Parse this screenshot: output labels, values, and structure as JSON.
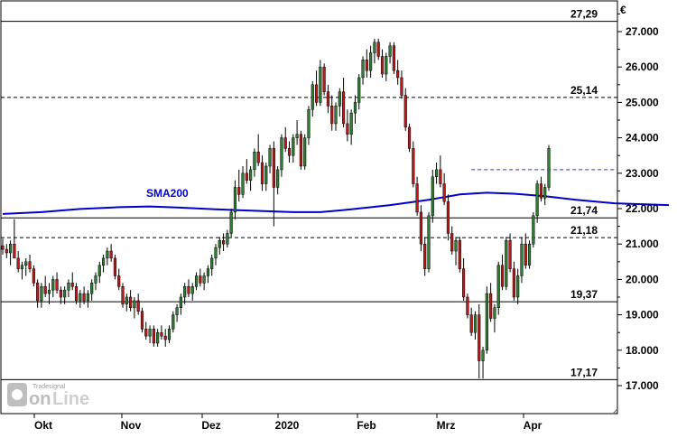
{
  "currency": "€",
  "watermark": {
    "brand": "Tradesignal",
    "name": "online"
  },
  "chart_data": {
    "type": "candlestick",
    "y_axis": {
      "ticks": [
        17000,
        18000,
        19000,
        20000,
        21000,
        22000,
        23000,
        24000,
        25000,
        26000,
        27000
      ],
      "tick_labels": [
        "17.000",
        "18.000",
        "19.000",
        "20.000",
        "21.000",
        "22.000",
        "23.000",
        "24.000",
        "25.000",
        "26.000",
        "27.000"
      ],
      "range": [
        16500,
        28000
      ],
      "side": "right"
    },
    "x_axis": {
      "labels": [
        "Okt",
        "Nov",
        "Dez",
        "2020",
        "Feb",
        "Mrz",
        "Apr"
      ]
    },
    "grid": false,
    "horizontal_levels": [
      {
        "value": 27290,
        "label": "27,29",
        "style": "solid"
      },
      {
        "value": 25140,
        "label": "25,14",
        "style": "dashed"
      },
      {
        "value": 21740,
        "label": "21,74",
        "style": "solid"
      },
      {
        "value": 21180,
        "label": "21,18",
        "style": "dashed"
      },
      {
        "value": 19370,
        "label": "19,37",
        "style": "solid"
      },
      {
        "value": 17170,
        "label": "17,17",
        "style": "solid"
      }
    ],
    "short_resistance": {
      "value": 23100,
      "from_index": 121,
      "style": "dashed",
      "color": "#3333cc"
    },
    "series_label": "SMA200",
    "sma200": [
      [
        0,
        21850
      ],
      [
        10,
        21900
      ],
      [
        20,
        21990
      ],
      [
        30,
        22040
      ],
      [
        38,
        22060
      ],
      [
        45,
        22030
      ],
      [
        55,
        21980
      ],
      [
        65,
        21940
      ],
      [
        75,
        21900
      ],
      [
        82,
        21900
      ],
      [
        90,
        21980
      ],
      [
        100,
        22100
      ],
      [
        110,
        22250
      ],
      [
        118,
        22400
      ],
      [
        125,
        22450
      ],
      [
        132,
        22420
      ],
      [
        140,
        22350
      ],
      [
        148,
        22250
      ],
      [
        158,
        22150
      ],
      [
        172,
        22100
      ]
    ],
    "candles": [
      [
        20950,
        21150,
        20700,
        20850
      ],
      [
        20850,
        21000,
        20600,
        20750
      ],
      [
        20750,
        21100,
        20400,
        21000
      ],
      [
        21000,
        21700,
        20700,
        20600
      ],
      [
        20600,
        20800,
        20200,
        20300
      ],
      [
        20300,
        20500,
        20000,
        20400
      ],
      [
        20400,
        20600,
        20100,
        20500
      ],
      [
        20500,
        20700,
        20200,
        20300
      ],
      [
        20300,
        20400,
        19800,
        19900
      ],
      [
        19900,
        20000,
        19200,
        19400
      ],
      [
        19400,
        19900,
        19200,
        19800
      ],
      [
        19800,
        20100,
        19500,
        19600
      ],
      [
        19600,
        19900,
        19300,
        19700
      ],
      [
        19700,
        20100,
        19500,
        20000
      ],
      [
        20000,
        20200,
        19600,
        19700
      ],
      [
        19700,
        19800,
        19300,
        19500
      ],
      [
        19500,
        19800,
        19300,
        19700
      ],
      [
        19700,
        20000,
        19500,
        19900
      ],
      [
        19900,
        20200,
        19700,
        19800
      ],
      [
        19800,
        19900,
        19300,
        19400
      ],
      [
        19400,
        19700,
        19200,
        19600
      ],
      [
        19600,
        19800,
        19300,
        19400
      ],
      [
        19400,
        19700,
        19200,
        19600
      ],
      [
        19600,
        20000,
        19400,
        19900
      ],
      [
        19900,
        20200,
        19700,
        20100
      ],
      [
        20100,
        20500,
        19900,
        20400
      ],
      [
        20400,
        20700,
        20200,
        20600
      ],
      [
        20600,
        20900,
        20400,
        20800
      ],
      [
        20800,
        21000,
        20500,
        20600
      ],
      [
        20600,
        20700,
        20000,
        20100
      ],
      [
        20100,
        20300,
        19700,
        19800
      ],
      [
        19800,
        19900,
        19200,
        19300
      ],
      [
        19300,
        19600,
        19100,
        19500
      ],
      [
        19500,
        19700,
        19100,
        19200
      ],
      [
        19200,
        19500,
        18900,
        19400
      ],
      [
        19400,
        19600,
        19000,
        19100
      ],
      [
        19100,
        19200,
        18500,
        18600
      ],
      [
        18600,
        18800,
        18300,
        18400
      ],
      [
        18400,
        18700,
        18200,
        18600
      ],
      [
        18600,
        18700,
        18100,
        18200
      ],
      [
        18200,
        18600,
        18100,
        18500
      ],
      [
        18500,
        18700,
        18300,
        18400
      ],
      [
        18400,
        18600,
        18100,
        18300
      ],
      [
        18300,
        18700,
        18200,
        18600
      ],
      [
        18600,
        19100,
        18500,
        19000
      ],
      [
        19000,
        19300,
        18800,
        19200
      ],
      [
        19200,
        19600,
        19000,
        19500
      ],
      [
        19500,
        19900,
        19300,
        19800
      ],
      [
        19800,
        20000,
        19500,
        19600
      ],
      [
        19600,
        19900,
        19400,
        19800
      ],
      [
        19800,
        20200,
        19700,
        20100
      ],
      [
        20100,
        20300,
        19800,
        19900
      ],
      [
        19900,
        20200,
        19700,
        20100
      ],
      [
        20100,
        20400,
        19900,
        20300
      ],
      [
        20300,
        20700,
        20100,
        20600
      ],
      [
        20600,
        21000,
        20400,
        20900
      ],
      [
        20900,
        21200,
        20700,
        21100
      ],
      [
        21100,
        21300,
        20800,
        21000
      ],
      [
        21000,
        21400,
        20900,
        21300
      ],
      [
        21300,
        22000,
        21200,
        21900
      ],
      [
        21900,
        22800,
        21700,
        22600
      ],
      [
        22600,
        23100,
        22200,
        22400
      ],
      [
        22400,
        23200,
        22300,
        23000
      ],
      [
        23000,
        23400,
        22700,
        22800
      ],
      [
        22800,
        23200,
        22500,
        23100
      ],
      [
        23100,
        23700,
        22900,
        23600
      ],
      [
        23600,
        24100,
        23200,
        23300
      ],
      [
        23300,
        23500,
        22500,
        22700
      ],
      [
        22700,
        23300,
        22500,
        23200
      ],
      [
        23200,
        23800,
        23000,
        23700
      ],
      [
        23700,
        23900,
        21500,
        22600
      ],
      [
        22600,
        23200,
        22400,
        23100
      ],
      [
        23100,
        24100,
        22900,
        24000
      ],
      [
        24000,
        24300,
        23600,
        23700
      ],
      [
        23700,
        23900,
        23300,
        23500
      ],
      [
        23500,
        24100,
        23300,
        24000
      ],
      [
        24000,
        24500,
        23800,
        24100
      ],
      [
        24100,
        24200,
        23100,
        23200
      ],
      [
        23200,
        24100,
        23100,
        24000
      ],
      [
        24000,
        24900,
        23800,
        24800
      ],
      [
        24800,
        25600,
        24600,
        25500
      ],
      [
        25500,
        25900,
        24900,
        25000
      ],
      [
        25000,
        26200,
        24900,
        26000
      ],
      [
        26000,
        26100,
        25200,
        25300
      ],
      [
        25300,
        25500,
        24700,
        24900
      ],
      [
        24900,
        25200,
        24200,
        24400
      ],
      [
        24400,
        25000,
        24200,
        24900
      ],
      [
        24900,
        25400,
        24600,
        25300
      ],
      [
        25300,
        25700,
        24300,
        24400
      ],
      [
        24400,
        24800,
        23900,
        24100
      ],
      [
        24100,
        24800,
        23800,
        24700
      ],
      [
        24700,
        25200,
        24400,
        25000
      ],
      [
        25000,
        25800,
        24800,
        25700
      ],
      [
        25700,
        26300,
        25500,
        26200
      ],
      [
        26200,
        26500,
        25700,
        25900
      ],
      [
        25900,
        26600,
        25700,
        26400
      ],
      [
        26400,
        26800,
        26100,
        26700
      ],
      [
        26700,
        26800,
        26200,
        26300
      ],
      [
        26300,
        26500,
        25700,
        25800
      ],
      [
        25800,
        26400,
        25600,
        26300
      ],
      [
        26300,
        26700,
        26100,
        26600
      ],
      [
        26600,
        26700,
        25800,
        25900
      ],
      [
        25900,
        26200,
        25500,
        25700
      ],
      [
        25700,
        25900,
        25100,
        25200
      ],
      [
        25200,
        25400,
        24200,
        24300
      ],
      [
        24300,
        24400,
        23600,
        23700
      ],
      [
        23700,
        23900,
        22600,
        22700
      ],
      [
        22700,
        22900,
        21800,
        21900
      ],
      [
        21900,
        22100,
        20800,
        21000
      ],
      [
        21000,
        21200,
        20100,
        20300
      ],
      [
        20300,
        21900,
        20200,
        21800
      ],
      [
        21800,
        23100,
        21600,
        22900
      ],
      [
        22900,
        23300,
        22700,
        23100
      ],
      [
        23100,
        23500,
        22600,
        22700
      ],
      [
        22700,
        23000,
        22100,
        22200
      ],
      [
        22200,
        22400,
        21100,
        21300
      ],
      [
        21300,
        21500,
        20700,
        20800
      ],
      [
        20800,
        21200,
        20400,
        21100
      ],
      [
        21100,
        21200,
        20200,
        20300
      ],
      [
        20300,
        20600,
        19400,
        19500
      ],
      [
        19500,
        19600,
        18900,
        19000
      ],
      [
        19000,
        19200,
        18400,
        18500
      ],
      [
        18500,
        19100,
        18300,
        19000
      ],
      [
        19000,
        19300,
        17200,
        17700
      ],
      [
        17700,
        18100,
        17200,
        18000
      ],
      [
        18000,
        19800,
        17900,
        19600
      ],
      [
        19600,
        19900,
        18800,
        18900
      ],
      [
        18900,
        19300,
        18500,
        19200
      ],
      [
        19200,
        20500,
        19000,
        20400
      ],
      [
        20400,
        20700,
        19700,
        19800
      ],
      [
        19800,
        21200,
        19700,
        21100
      ],
      [
        21100,
        21300,
        20200,
        20300
      ],
      [
        20300,
        20500,
        19400,
        19500
      ],
      [
        19500,
        20300,
        19300,
        20100
      ],
      [
        20100,
        21200,
        19900,
        21000
      ],
      [
        21000,
        21300,
        20300,
        20400
      ],
      [
        20400,
        21100,
        20300,
        21000
      ],
      [
        21000,
        21900,
        20900,
        21800
      ],
      [
        21800,
        22800,
        21600,
        22700
      ],
      [
        22700,
        22900,
        22200,
        22300
      ],
      [
        22300,
        22700,
        22100,
        22600
      ],
      [
        22600,
        23800,
        22500,
        23700
      ]
    ]
  }
}
